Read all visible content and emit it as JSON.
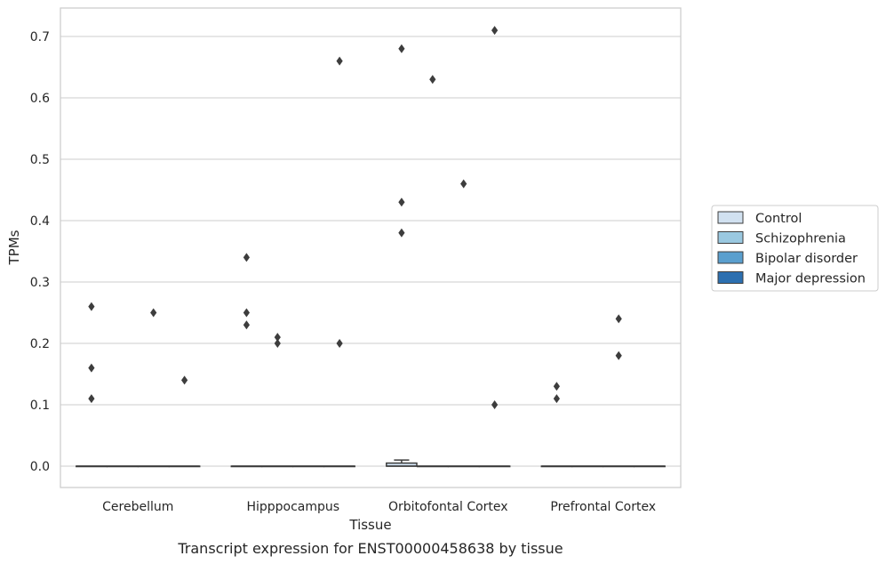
{
  "caption": "Transcript expression for ENST00000458638 by tissue",
  "chart_data": {
    "type": "box",
    "title": "",
    "xlabel": "Tissue",
    "ylabel": "TPMs",
    "ylim": [
      -0.035,
      0.746
    ],
    "yticks": [
      0.0,
      0.1,
      0.2,
      0.3,
      0.4,
      0.5,
      0.6,
      0.7
    ],
    "ytick_labels": [
      "0.0",
      "0.1",
      "0.2",
      "0.3",
      "0.4",
      "0.5",
      "0.6",
      "0.7"
    ],
    "grid": "horizontal",
    "legend_position": "right",
    "categories": [
      "Cerebellum",
      "Hipppocampus",
      "Orbitofontal Cortex",
      "Prefrontal Cortex"
    ],
    "series": [
      {
        "name": "Control",
        "color": "#d1e1f0",
        "boxes": [
          {
            "q1": 0.0,
            "median": 0.0,
            "q3": 0.0,
            "whisker_low": 0.0,
            "whisker_high": 0.0,
            "outliers": [
              0.26,
              0.16,
              0.11
            ]
          },
          {
            "q1": 0.0,
            "median": 0.0,
            "q3": 0.0,
            "whisker_low": 0.0,
            "whisker_high": 0.0,
            "outliers": [
              0.34,
              0.25,
              0.23
            ]
          },
          {
            "q1": 0.0,
            "median": 0.0,
            "q3": 0.005,
            "whisker_low": 0.0,
            "whisker_high": 0.01,
            "outliers": [
              0.68,
              0.43,
              0.38
            ]
          },
          {
            "q1": 0.0,
            "median": 0.0,
            "q3": 0.0,
            "whisker_low": 0.0,
            "whisker_high": 0.0,
            "outliers": [
              0.13,
              0.11
            ]
          }
        ]
      },
      {
        "name": "Schizophrenia",
        "color": "#9ac8e0",
        "boxes": [
          {
            "q1": 0.0,
            "median": 0.0,
            "q3": 0.0,
            "whisker_low": 0.0,
            "whisker_high": 0.0,
            "outliers": []
          },
          {
            "q1": 0.0,
            "median": 0.0,
            "q3": 0.0,
            "whisker_low": 0.0,
            "whisker_high": 0.0,
            "outliers": [
              0.21,
              0.2
            ]
          },
          {
            "q1": 0.0,
            "median": 0.0,
            "q3": 0.0,
            "whisker_low": 0.0,
            "whisker_high": 0.0,
            "outliers": [
              0.63
            ]
          },
          {
            "q1": 0.0,
            "median": 0.0,
            "q3": 0.0,
            "whisker_low": 0.0,
            "whisker_high": 0.0,
            "outliers": []
          }
        ]
      },
      {
        "name": "Bipolar disorder",
        "color": "#5a9fce",
        "boxes": [
          {
            "q1": 0.0,
            "median": 0.0,
            "q3": 0.0,
            "whisker_low": 0.0,
            "whisker_high": 0.0,
            "outliers": [
              0.25
            ]
          },
          {
            "q1": 0.0,
            "median": 0.0,
            "q3": 0.0,
            "whisker_low": 0.0,
            "whisker_high": 0.0,
            "outliers": []
          },
          {
            "q1": 0.0,
            "median": 0.0,
            "q3": 0.0,
            "whisker_low": 0.0,
            "whisker_high": 0.0,
            "outliers": [
              0.46
            ]
          },
          {
            "q1": 0.0,
            "median": 0.0,
            "q3": 0.0,
            "whisker_low": 0.0,
            "whisker_high": 0.0,
            "outliers": [
              0.24,
              0.18
            ]
          }
        ]
      },
      {
        "name": "Major depression",
        "color": "#2c6fb0",
        "boxes": [
          {
            "q1": 0.0,
            "median": 0.0,
            "q3": 0.0,
            "whisker_low": 0.0,
            "whisker_high": 0.0,
            "outliers": [
              0.14
            ]
          },
          {
            "q1": 0.0,
            "median": 0.0,
            "q3": 0.0,
            "whisker_low": 0.0,
            "whisker_high": 0.0,
            "outliers": [
              0.66,
              0.2
            ]
          },
          {
            "q1": 0.0,
            "median": 0.0,
            "q3": 0.0,
            "whisker_low": 0.0,
            "whisker_high": 0.0,
            "outliers": [
              0.71,
              0.1
            ]
          },
          {
            "q1": 0.0,
            "median": 0.0,
            "q3": 0.0,
            "whisker_low": 0.0,
            "whisker_high": 0.0,
            "outliers": []
          }
        ]
      }
    ]
  }
}
